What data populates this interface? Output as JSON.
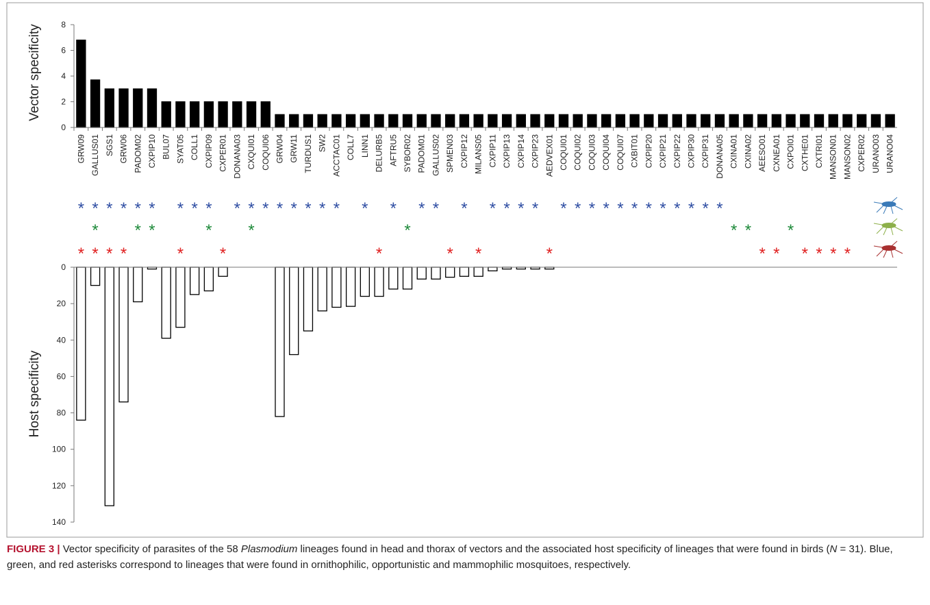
{
  "chart_data": [
    {
      "type": "bar",
      "ylabel": "Vector specificity",
      "color": "#000000",
      "categories": [
        "GRW09",
        "GALLUS01",
        "SGS1",
        "GRW06",
        "PADOM02",
        "CXPIP10",
        "BUL07",
        "SYAT05",
        "COLL1",
        "CXPIP09",
        "CXPER01",
        "DONANA03",
        "CXQUI01",
        "COQUI06",
        "GRW04",
        "GRW11",
        "TURDUS1",
        "SW2",
        "ACCTAC01",
        "COLL7",
        "LINN1",
        "DELURB5",
        "AFTRU5",
        "SYBOR02",
        "PADOM01",
        "GALLUS02",
        "SPMEN03",
        "CXPIP12",
        "MILANS05",
        "CXPIP11",
        "CXPIP13",
        "CXPIP14",
        "CXPIP23",
        "AEDVEX01",
        "COQUI01",
        "COQUI02",
        "COQUI03",
        "COQUI04",
        "COQUI07",
        "CXBIT01",
        "CXPIP20",
        "CXPIP21",
        "CXPIP22",
        "CXPIP30",
        "CXPIP31",
        "DONANA05",
        "CXINA01",
        "CXINA02",
        "AEESO01",
        "CXNEA01",
        "CXPOI01",
        "CXTHE01",
        "CXTRI01",
        "MANSON01",
        "MANSON02",
        "CXPER02",
        "URANO03",
        "URANO04"
      ],
      "values": [
        6.8,
        3.7,
        3,
        3,
        3,
        3,
        2,
        2,
        2,
        2,
        2,
        2,
        2,
        2,
        1,
        1,
        1,
        1,
        1,
        1,
        1,
        1,
        1,
        1,
        1,
        1,
        1,
        1,
        1,
        1,
        1,
        1,
        1,
        1,
        1,
        1,
        1,
        1,
        1,
        1,
        1,
        1,
        1,
        1,
        1,
        1,
        1,
        1,
        1,
        1,
        1,
        1,
        1,
        1,
        1,
        1,
        1,
        1
      ],
      "ylim": [
        0,
        8
      ],
      "yticks": [
        0,
        2,
        4,
        6,
        8
      ]
    },
    {
      "type": "bar",
      "ylabel": "Host specificity",
      "color": "#ffffff",
      "inverted": true,
      "values": [
        84,
        10,
        131,
        74,
        19,
        1,
        39,
        33,
        15,
        13,
        5,
        null,
        null,
        null,
        82,
        48,
        35,
        24,
        22,
        21.5,
        16,
        16,
        12,
        12,
        6.5,
        6.5,
        5.5,
        5,
        5,
        2,
        1,
        1,
        1,
        1,
        null,
        null,
        null,
        null,
        null,
        null,
        null,
        null,
        null,
        null,
        null,
        null,
        null,
        null,
        null,
        null,
        null,
        null,
        null,
        null,
        null,
        null,
        null,
        null
      ],
      "ylim": [
        0,
        140
      ],
      "yticks": [
        0,
        20,
        40,
        60,
        80,
        100,
        120,
        140
      ]
    }
  ],
  "markers": {
    "symbol": "*",
    "rows": [
      {
        "color": "#2f4ea3",
        "lineages": [
          "GRW09",
          "GALLUS01",
          "SGS1",
          "GRW06",
          "PADOM02",
          "CXPIP10",
          "SYAT05",
          "COLL1",
          "CXPIP09",
          "DONANA03",
          "CXQUI01",
          "COQUI06",
          "GRW04",
          "GRW11",
          "TURDUS1",
          "SW2",
          "ACCTAC01",
          "LINN1",
          "AFTRU5",
          "PADOM01",
          "GALLUS02",
          "CXPIP12",
          "CXPIP11",
          "CXPIP13",
          "CXPIP14",
          "CXPIP23",
          "COQUI01",
          "COQUI02",
          "COQUI03",
          "COQUI04",
          "COQUI07",
          "CXBIT01",
          "CXPIP20",
          "CXPIP21",
          "CXPIP22",
          "CXPIP30",
          "CXPIP31",
          "DONANA05"
        ]
      },
      {
        "color": "#1e8a3a",
        "lineages": [
          "GALLUS01",
          "PADOM02",
          "CXPIP10",
          "CXPIP09",
          "CXQUI01",
          "SYBOR02",
          "CXINA01",
          "CXINA02",
          "CXPOI01"
        ]
      },
      {
        "color": "#e02020",
        "lineages": [
          "GRW09",
          "GALLUS01",
          "SGS1",
          "GRW06",
          "SYAT05",
          "CXPER01",
          "DELURB5",
          "SPMEN03",
          "MILANS05",
          "AEDVEX01",
          "AEESO01",
          "CXNEA01",
          "CXTHE01",
          "CXTRI01",
          "MANSON01",
          "MANSON02"
        ]
      }
    ]
  },
  "caption": {
    "label": "FIGURE 3 |",
    "parts": [
      " Vector specificity of parasites of the 58 ",
      "Plasmodium",
      " lineages found in head and thorax of vectors and the associated host specificity of lineages that were found in birds (",
      "N",
      " = 31). Blue, green, and red asterisks correspond to lineages that were found in ornithophilic, opportunistic and mammophilic mosquitoes, respectively."
    ]
  }
}
